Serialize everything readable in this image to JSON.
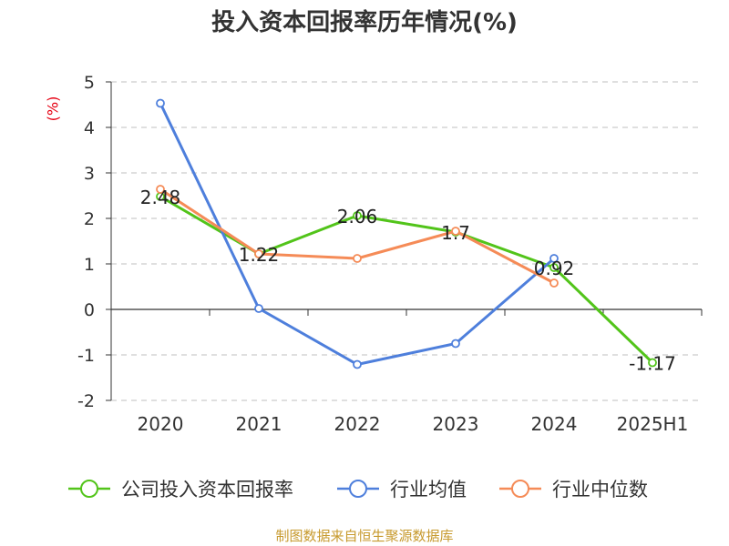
{
  "chart_data": {
    "type": "line",
    "title": "投入资本回报率历年情况(%)",
    "ylabel": "(%)",
    "categories": [
      "2020",
      "2021",
      "2022",
      "2023",
      "2024",
      "2025H1"
    ],
    "ylim": [
      -2,
      5
    ],
    "yticks": [
      -2,
      -1,
      0,
      1,
      2,
      3,
      4,
      5
    ],
    "grid": true,
    "legend_position": "bottom",
    "series": [
      {
        "name": "公司投入资本回报率",
        "color": "#52c41a",
        "values": [
          2.48,
          1.22,
          2.06,
          1.7,
          0.92,
          -1.17
        ],
        "labels": [
          "2.48",
          "1.22",
          "2.06",
          "1.7",
          "0.92",
          "-1.17"
        ]
      },
      {
        "name": "行业均值",
        "color": "#4e7fdc",
        "values": [
          4.53,
          0.02,
          -1.21,
          -0.75,
          1.12,
          null
        ]
      },
      {
        "name": "行业中位数",
        "color": "#f58b57",
        "values": [
          2.64,
          1.22,
          1.12,
          1.72,
          0.58,
          null
        ]
      }
    ]
  },
  "source": "制图数据来自恒生聚源数据库"
}
